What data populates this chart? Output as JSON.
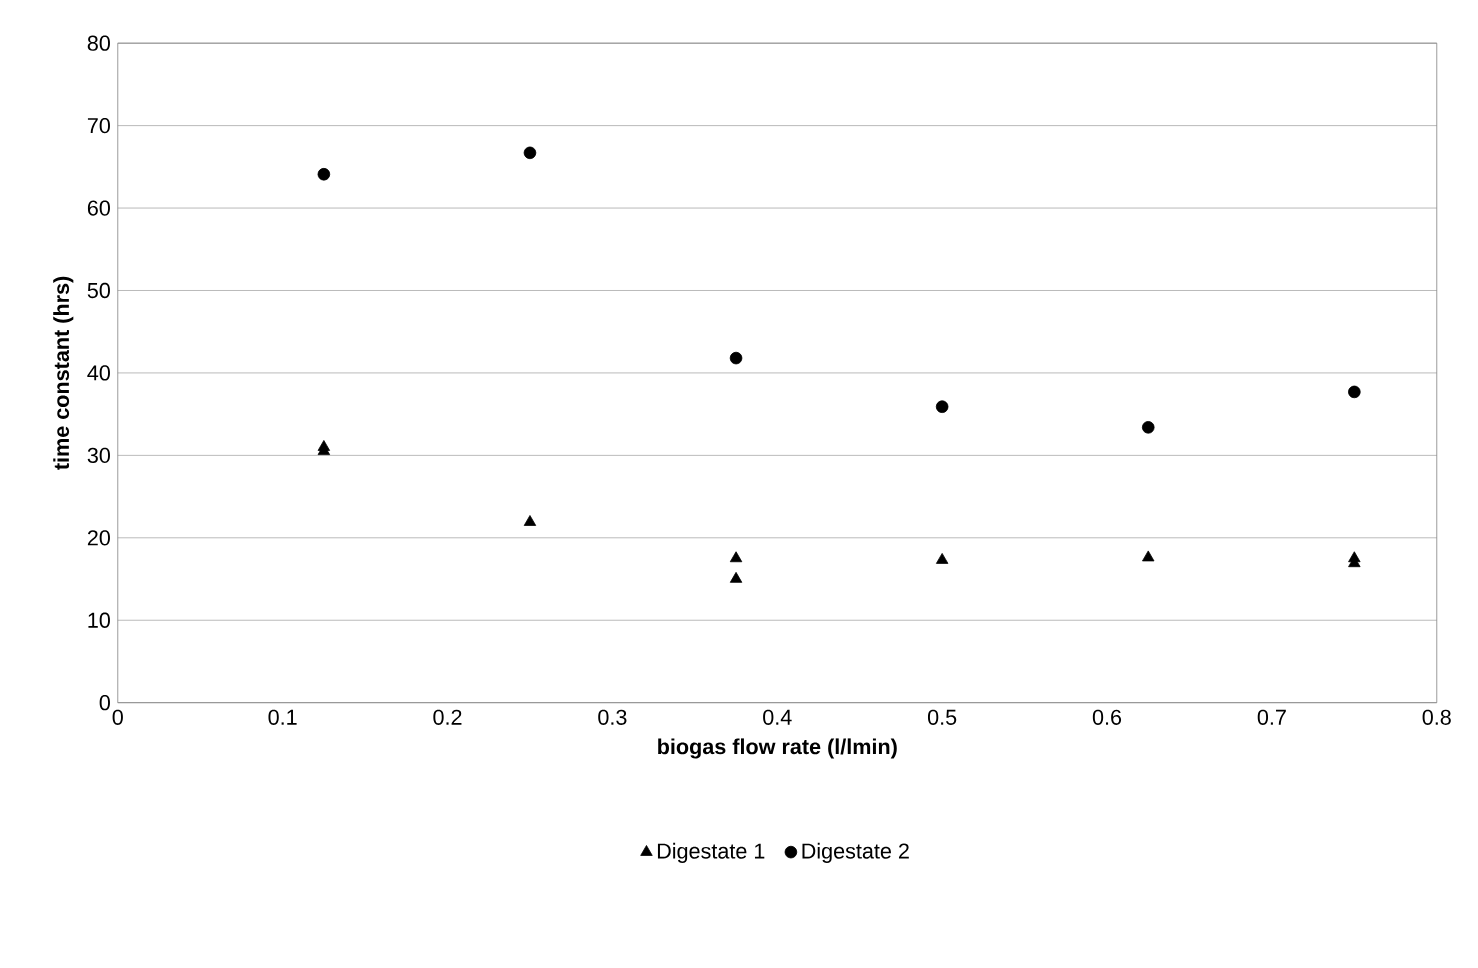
{
  "chart_data": {
    "type": "scatter",
    "xlabel": "biogas flow rate (l/lmin)",
    "ylabel": "time constant (hrs)",
    "xlim": [
      0,
      0.8
    ],
    "xticks": [
      0,
      0.1,
      0.2,
      0.3,
      0.4,
      0.5,
      0.6,
      0.7,
      0.8
    ],
    "ylim": [
      0,
      80
    ],
    "yticks": [
      0,
      10,
      20,
      30,
      40,
      50,
      60,
      70,
      80
    ],
    "grid": "y",
    "legend": "bottom",
    "series": [
      {
        "name": "Digestate 1",
        "color": "#000000",
        "marker": "triangle",
        "x": [
          0.125,
          0.125,
          0.25,
          0.375,
          0.375,
          0.5,
          0.625,
          0.75,
          0.75
        ],
        "values": [
          31,
          30.5,
          21.9,
          17.5,
          15,
          17.3,
          17.6,
          17.5,
          16.9
        ]
      },
      {
        "name": "Digestate 2",
        "color": "#000000",
        "marker": "circle",
        "x": [
          0.125,
          0.25,
          0.375,
          0.5,
          0.625,
          0.75
        ],
        "values": [
          64.1,
          66.7,
          41.8,
          35.9,
          33.4,
          37.7
        ]
      }
    ]
  }
}
